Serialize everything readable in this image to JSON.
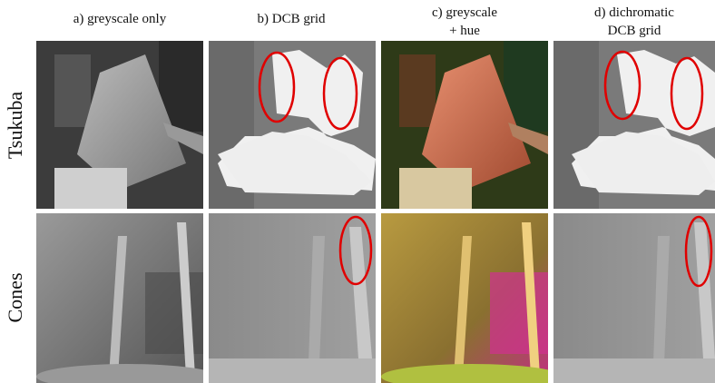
{
  "columns": [
    {
      "lines": [
        "a) greyscale only"
      ]
    },
    {
      "lines": [
        "b) DCB grid"
      ]
    },
    {
      "lines": [
        "c) greyscale",
        "+ hue"
      ]
    },
    {
      "lines": [
        "d) dichromatic",
        "DCB grid"
      ]
    }
  ],
  "rows": [
    "Tsukuba",
    "Cones"
  ]
}
